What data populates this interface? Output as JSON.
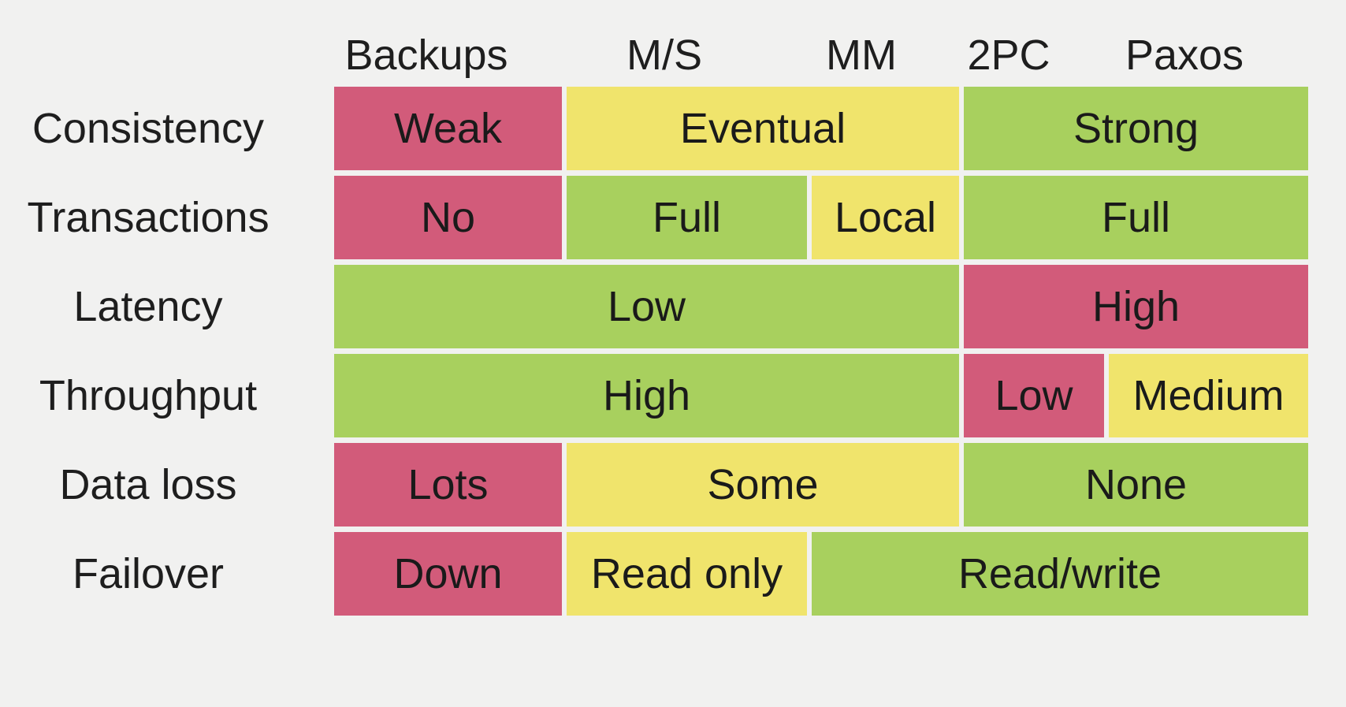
{
  "columns": [
    "Backups",
    "M/S",
    "MM",
    "2PC",
    "Paxos"
  ],
  "colors": {
    "red": "#d25b7a",
    "yellow": "#f0e46c",
    "green": "#a8d05e"
  },
  "rows": [
    {
      "label": "Consistency",
      "cells": [
        {
          "text": "Weak",
          "span": [
            0,
            1
          ],
          "color": "red"
        },
        {
          "text": "Eventual",
          "span": [
            1,
            3
          ],
          "color": "yellow"
        },
        {
          "text": "Strong",
          "span": [
            3,
            5
          ],
          "color": "green"
        }
      ]
    },
    {
      "label": "Transactions",
      "cells": [
        {
          "text": "No",
          "span": [
            0,
            1
          ],
          "color": "red"
        },
        {
          "text": "Full",
          "span": [
            1,
            2
          ],
          "color": "green"
        },
        {
          "text": "Local",
          "span": [
            2,
            3
          ],
          "color": "yellow"
        },
        {
          "text": "Full",
          "span": [
            3,
            5
          ],
          "color": "green"
        }
      ]
    },
    {
      "label": "Latency",
      "cells": [
        {
          "text": "Low",
          "span": [
            0,
            3
          ],
          "color": "green"
        },
        {
          "text": "High",
          "span": [
            3,
            5
          ],
          "color": "red"
        }
      ]
    },
    {
      "label": "Throughput",
      "cells": [
        {
          "text": "High",
          "span": [
            0,
            3
          ],
          "color": "green"
        },
        {
          "text": "Low",
          "span": [
            3,
            4
          ],
          "color": "red"
        },
        {
          "text": "Medium",
          "span": [
            4,
            5
          ],
          "color": "yellow"
        }
      ]
    },
    {
      "label": "Data loss",
      "cells": [
        {
          "text": "Lots",
          "span": [
            0,
            1
          ],
          "color": "red"
        },
        {
          "text": "Some",
          "span": [
            1,
            3
          ],
          "color": "yellow"
        },
        {
          "text": "None",
          "span": [
            3,
            5
          ],
          "color": "green"
        }
      ]
    },
    {
      "label": "Failover",
      "cells": [
        {
          "text": "Down",
          "span": [
            0,
            1
          ],
          "color": "red"
        },
        {
          "text": "Read only",
          "span": [
            1,
            2
          ],
          "color": "yellow"
        },
        {
          "text": "Read/write",
          "span": [
            2,
            5
          ],
          "color": "green"
        }
      ]
    }
  ]
}
